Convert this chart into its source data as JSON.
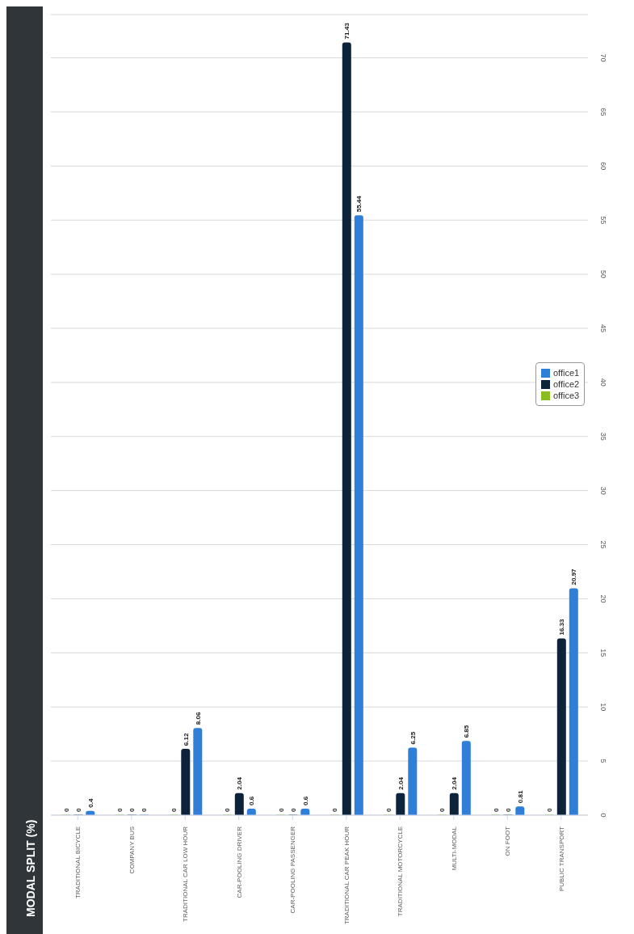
{
  "chart_data": {
    "type": "bar",
    "title": "MODAL SPLIT (%)",
    "categories": [
      "TRADITIONAL BICYCLE",
      "COMPANY BUS",
      "TRADITIONAL CAR LOW HOUR",
      "CAR-POOLING DRIVER",
      "CAR-POOLING PASSENGER",
      "TRADITIONAL CAR PEAK HOUR",
      "TRADITIONAL MOTORCYCLE",
      "MULTI-MODAL",
      "ON FOOT",
      "PUBLIC TRANSPORT"
    ],
    "series": [
      {
        "name": "office1",
        "color": "#2f7ed8",
        "values": [
          0.4,
          0,
          8.06,
          0.6,
          0.6,
          55.44,
          6.25,
          6.85,
          0.81,
          20.97
        ]
      },
      {
        "name": "office2",
        "color": "#0d233a",
        "values": [
          0,
          0,
          6.12,
          2.04,
          0,
          71.43,
          2.04,
          2.04,
          0,
          16.33
        ]
      },
      {
        "name": "office3",
        "color": "#8bbc21",
        "values": [
          0,
          0,
          0,
          0,
          0,
          0,
          0,
          0,
          0,
          0
        ]
      }
    ],
    "ylim": [
      0,
      74
    ],
    "yticks": [
      0,
      5,
      10,
      15,
      20,
      25,
      30,
      35,
      40,
      45,
      50,
      55,
      60,
      65,
      70
    ],
    "grid": "y",
    "legend": "right",
    "data_labels": true
  }
}
